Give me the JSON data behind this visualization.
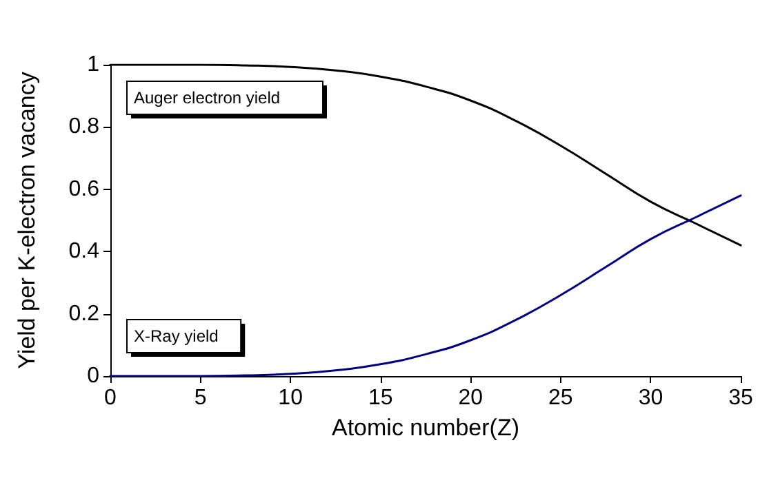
{
  "chart_data": {
    "type": "line",
    "xlabel": "Atomic number(Z)",
    "ylabel": "Yield per K-electron vacancy",
    "x": [
      0,
      2.5,
      5,
      7.5,
      10,
      12.5,
      15,
      17.5,
      20,
      22.5,
      25,
      27.5,
      30,
      32.5,
      35
    ],
    "series": [
      {
        "name": "Auger electron yield",
        "color": "#000000",
        "values": [
          1,
          1,
          1,
          0.998,
          0.993,
          0.982,
          0.962,
          0.93,
          0.885,
          0.82,
          0.74,
          0.65,
          0.56,
          0.49,
          0.42
        ]
      },
      {
        "name": "X-Ray yield",
        "color": "#000080",
        "values": [
          0,
          0,
          0,
          0.002,
          0.007,
          0.018,
          0.038,
          0.07,
          0.115,
          0.18,
          0.26,
          0.35,
          0.44,
          0.51,
          0.58
        ]
      }
    ],
    "xlim": [
      0,
      35
    ],
    "xticks": [
      0,
      5,
      10,
      15,
      20,
      25,
      30,
      35
    ],
    "ylim": [
      0,
      1
    ],
    "yticks": [
      0,
      0.2,
      0.4,
      0.6,
      0.8,
      1
    ],
    "grid": false,
    "marker": "none",
    "line_style": "solid"
  }
}
